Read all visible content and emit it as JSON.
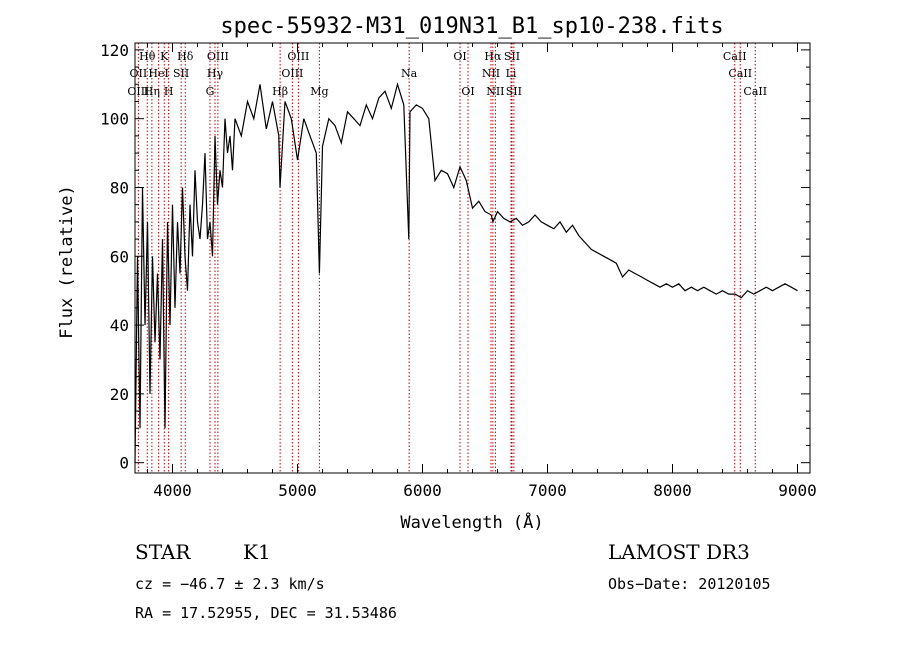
{
  "chart_data": {
    "type": "line",
    "title": "spec-55932-M31_019N31_B1_sp10-238.fits",
    "xlabel": "Wavelength (Å)",
    "ylabel": "Flux (relative)",
    "xlim": [
      3700,
      9100
    ],
    "ylim": [
      -3,
      122
    ],
    "xticks": [
      4000,
      5000,
      6000,
      7000,
      8000,
      9000
    ],
    "yticks": [
      0,
      20,
      40,
      60,
      80,
      100,
      120
    ],
    "grid": false,
    "series": [
      {
        "x": [
          3700,
          3720,
          3740,
          3760,
          3780,
          3800,
          3820,
          3840,
          3860,
          3880,
          3900,
          3920,
          3940,
          3960,
          3980,
          4000,
          4020,
          4040,
          4060,
          4080,
          4100,
          4120,
          4140,
          4160,
          4180,
          4200,
          4220,
          4240,
          4260,
          4280,
          4300,
          4320,
          4340,
          4360,
          4380,
          4400,
          4420,
          4440,
          4460,
          4480,
          4500,
          4550,
          4600,
          4650,
          4700,
          4750,
          4800,
          4850,
          4860,
          4900,
          4950,
          5000,
          5050,
          5100,
          5150,
          5175,
          5200,
          5250,
          5300,
          5350,
          5400,
          5450,
          5500,
          5550,
          5600,
          5650,
          5700,
          5750,
          5800,
          5850,
          5890,
          5900,
          5950,
          6000,
          6050,
          6100,
          6150,
          6200,
          6250,
          6300,
          6350,
          6400,
          6450,
          6500,
          6550,
          6563,
          6600,
          6650,
          6700,
          6750,
          6800,
          6850,
          6900,
          6950,
          7000,
          7050,
          7100,
          7150,
          7200,
          7250,
          7300,
          7350,
          7400,
          7450,
          7500,
          7550,
          7600,
          7650,
          7700,
          7750,
          7800,
          7850,
          7900,
          7950,
          8000,
          8050,
          8100,
          8150,
          8200,
          8250,
          8300,
          8350,
          8400,
          8450,
          8500,
          8550,
          8600,
          8650,
          8700,
          8750,
          8800,
          8850,
          8900,
          8950,
          9000
        ],
        "y": [
          0,
          60,
          10,
          80,
          40,
          70,
          20,
          60,
          35,
          55,
          30,
          65,
          10,
          70,
          40,
          75,
          45,
          70,
          55,
          80,
          60,
          50,
          75,
          60,
          85,
          70,
          65,
          75,
          90,
          65,
          70,
          60,
          95,
          75,
          85,
          80,
          100,
          90,
          95,
          85,
          100,
          95,
          105,
          100,
          110,
          97,
          105,
          95,
          80,
          105,
          100,
          88,
          100,
          95,
          90,
          55,
          92,
          100,
          98,
          93,
          102,
          100,
          98,
          104,
          100,
          106,
          108,
          103,
          110,
          104,
          65,
          102,
          104,
          103,
          100,
          82,
          85,
          84,
          80,
          86,
          82,
          74,
          76,
          73,
          72,
          70,
          73,
          71,
          70,
          71,
          69,
          70,
          72,
          70,
          69,
          68,
          70,
          67,
          69,
          66,
          64,
          62,
          61,
          60,
          59,
          58,
          54,
          56,
          55,
          54,
          53,
          52,
          51,
          52,
          51,
          52,
          50,
          51,
          50,
          51,
          50,
          49,
          50,
          49,
          49,
          48,
          50,
          49,
          50,
          51,
          50,
          51,
          52,
          51,
          50
        ]
      }
    ],
    "lines": [
      {
        "label": "Hθ",
        "x": 3798,
        "row": 1,
        "dx": 0
      },
      {
        "label": "K",
        "x": 3934,
        "row": 1,
        "dx": 0
      },
      {
        "label": "Hδ",
        "x": 4102,
        "row": 1,
        "dx": 0
      },
      {
        "label": "OIII",
        "x": 4363,
        "row": 1,
        "dx": 0
      },
      {
        "label": "OIII",
        "x": 5007,
        "row": 1,
        "dx": 0
      },
      {
        "label": "OI",
        "x": 6300,
        "row": 1,
        "dx": 0
      },
      {
        "label": "Hα",
        "x": 6563,
        "row": 1,
        "dx": 0
      },
      {
        "label": "SII",
        "x": 6716,
        "row": 1,
        "dx": 0
      },
      {
        "label": "CaII",
        "x": 8498,
        "row": 1,
        "dx": 0
      },
      {
        "label": "OII",
        "x": 3727,
        "row": 2,
        "dx": 0
      },
      {
        "label": "HeI",
        "x": 3889,
        "row": 2,
        "dx": 0
      },
      {
        "label": "SII",
        "x": 4069,
        "row": 2,
        "dx": 0
      },
      {
        "label": "Hγ",
        "x": 4340,
        "row": 2,
        "dx": 0
      },
      {
        "label": "OIII",
        "x": 4959,
        "row": 2,
        "dx": 0
      },
      {
        "label": "Na",
        "x": 5893,
        "row": 2,
        "dx": 0
      },
      {
        "label": "NII",
        "x": 6548,
        "row": 2,
        "dx": 0
      },
      {
        "label": "Li",
        "x": 6708,
        "row": 2,
        "dx": 0
      },
      {
        "label": "CaII",
        "x": 8542,
        "row": 2,
        "dx": 0
      },
      {
        "label": "OIII",
        "x": 3727,
        "row": 3,
        "dx": 0
      },
      {
        "label": "Hη",
        "x": 3835,
        "row": 3,
        "dx": 0
      },
      {
        "label": "H",
        "x": 3969,
        "row": 3,
        "dx": 0
      },
      {
        "label": "G",
        "x": 4300,
        "row": 3,
        "dx": 0
      },
      {
        "label": "Hβ",
        "x": 4861,
        "row": 3,
        "dx": 0
      },
      {
        "label": "Mg",
        "x": 5175,
        "row": 3,
        "dx": 0
      },
      {
        "label": "OI",
        "x": 6364,
        "row": 3,
        "dx": 0
      },
      {
        "label": "NII",
        "x": 6583,
        "row": 3,
        "dx": 0
      },
      {
        "label": "SII",
        "x": 6731,
        "row": 3,
        "dx": 0
      },
      {
        "label": "CaII",
        "x": 8662,
        "row": 3,
        "dx": 0
      }
    ]
  },
  "info": {
    "object_class": "STAR",
    "subclass": "K1",
    "survey": "LAMOST DR3",
    "cz": "cz = −46.7 ± 2.3 km/s",
    "obs_date": "Obs−Date: 20120105",
    "coords": "RA =  17.52955, DEC =  31.53486"
  },
  "colors": {
    "line_markers": "#c00000",
    "spectrum": "#000000"
  }
}
